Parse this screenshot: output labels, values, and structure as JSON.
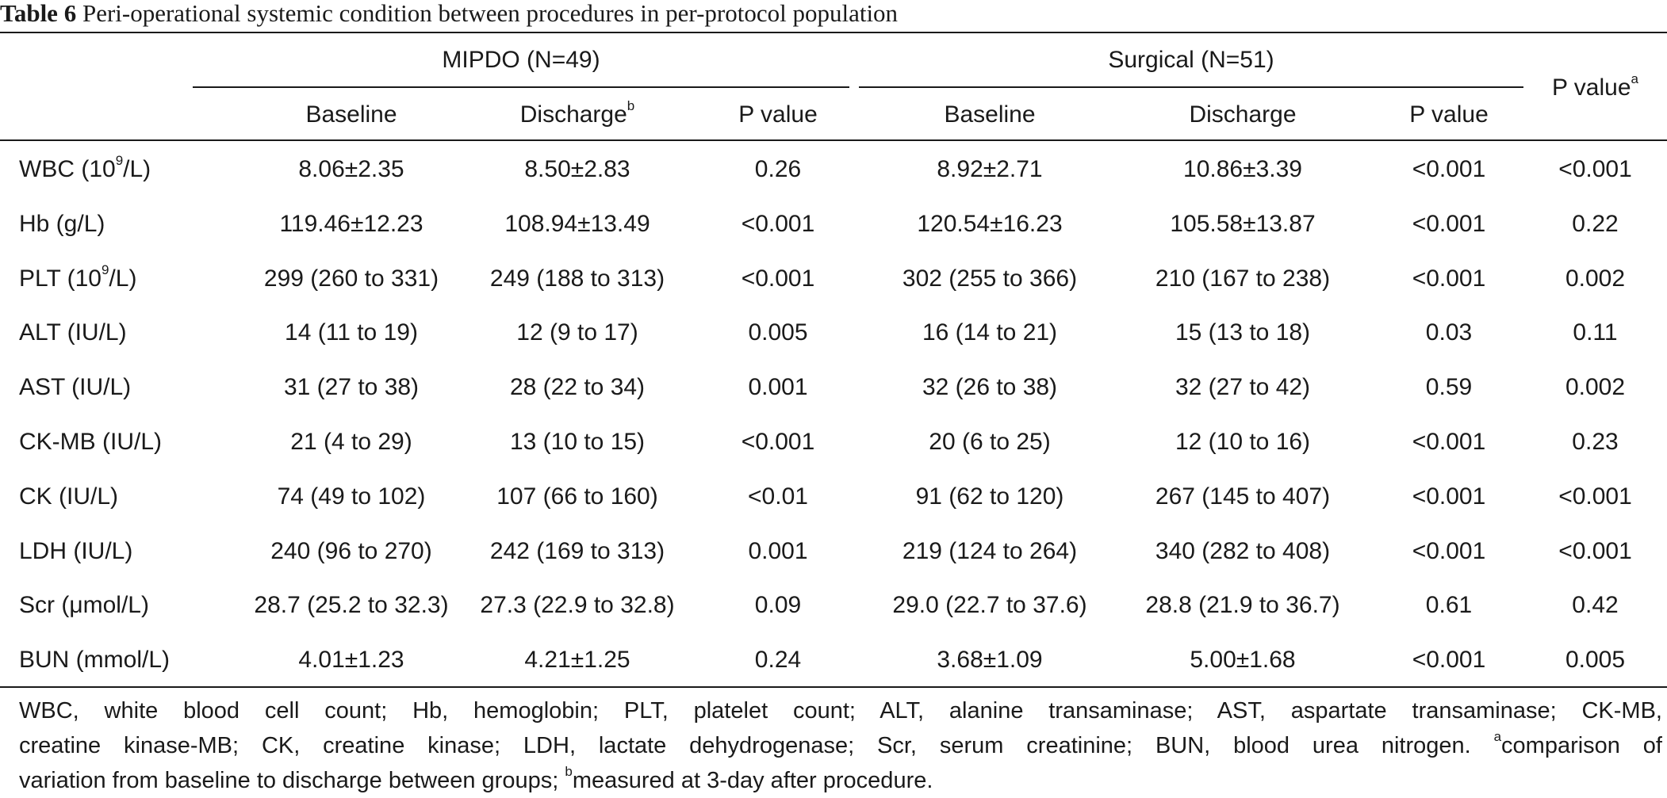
{
  "caption": {
    "label": "Table 6",
    "text": "Peri-operational systemic condition between procedures in per-protocol population"
  },
  "header": {
    "group1": "MIPDO (N=49)",
    "group2": "Surgical (N=51)",
    "pvalue_overall": "P value",
    "pvalue_overall_sup": "a",
    "baseline": "Baseline",
    "discharge": "Discharge",
    "discharge_sup": "b",
    "pvalue": "P value"
  },
  "rows": [
    {
      "label": "WBC (10",
      "label_sup": "9",
      "label_tail": "/L)",
      "cells": [
        "8.06±2.35",
        "8.50±2.83",
        "0.26",
        "8.92±2.71",
        "10.86±3.39",
        "<0.001",
        "<0.001"
      ]
    },
    {
      "label": "Hb (g/L)",
      "cells": [
        "119.46±12.23",
        "108.94±13.49",
        "<0.001",
        "120.54±16.23",
        "105.58±13.87",
        "<0.001",
        "0.22"
      ]
    },
    {
      "label": "PLT (10",
      "label_sup": "9",
      "label_tail": "/L)",
      "cells": [
        "299 (260 to 331)",
        "249 (188 to 313)",
        "<0.001",
        "302 (255 to 366)",
        "210 (167 to 238)",
        "<0.001",
        "0.002"
      ]
    },
    {
      "label": "ALT (IU/L)",
      "cells": [
        "14 (11 to 19)",
        "12 (9 to 17)",
        "0.005",
        "16 (14 to 21)",
        "15 (13 to 18)",
        "0.03",
        "0.11"
      ]
    },
    {
      "label": "AST (IU/L)",
      "cells": [
        "31 (27 to 38)",
        "28 (22 to 34)",
        "0.001",
        "32 (26 to 38)",
        "32 (27 to 42)",
        "0.59",
        "0.002"
      ]
    },
    {
      "label": "CK-MB (IU/L)",
      "cells": [
        "21 (4 to 29)",
        "13 (10 to 15)",
        "<0.001",
        "20 (6 to 25)",
        "12 (10 to 16)",
        "<0.001",
        "0.23"
      ]
    },
    {
      "label": "CK (IU/L)",
      "cells": [
        "74 (49 to 102)",
        "107 (66 to 160)",
        "<0.01",
        "91 (62 to 120)",
        "267 (145 to 407)",
        "<0.001",
        "<0.001"
      ]
    },
    {
      "label": "LDH (IU/L)",
      "cells": [
        "240 (96 to 270)",
        "242 (169 to 313)",
        "0.001",
        "219 (124 to 264)",
        "340 (282 to 408)",
        "<0.001",
        "<0.001"
      ]
    },
    {
      "label": "Scr (μmol/L)",
      "cells": [
        "28.7 (25.2 to 32.3)",
        "27.3 (22.9 to 32.8)",
        "0.09",
        "29.0 (22.7 to 37.6)",
        "28.8 (21.9 to 36.7)",
        "0.61",
        "0.42"
      ]
    },
    {
      "label": "BUN (mmol/L)",
      "cells": [
        "4.01±1.23",
        "4.21±1.25",
        "0.24",
        "3.68±1.09",
        "5.00±1.68",
        "<0.001",
        "0.005"
      ]
    }
  ],
  "footnote": {
    "line1": "WBC, white blood cell count; Hb, hemoglobin; PLT, platelet count; ALT, alanine transaminase; AST, aspartate transaminase; CK-MB,",
    "line2_a": "creatine kinase-MB; CK, creatine kinase; LDH, lactate dehydrogenase; Scr, serum creatinine; BUN, blood urea nitrogen.",
    "line2_sup": "a",
    "line2_b": "comparison of",
    "line3_a": "variation from baseline to discharge between groups;",
    "line3_sup": "b",
    "line3_b": "measured at 3-day after procedure."
  }
}
